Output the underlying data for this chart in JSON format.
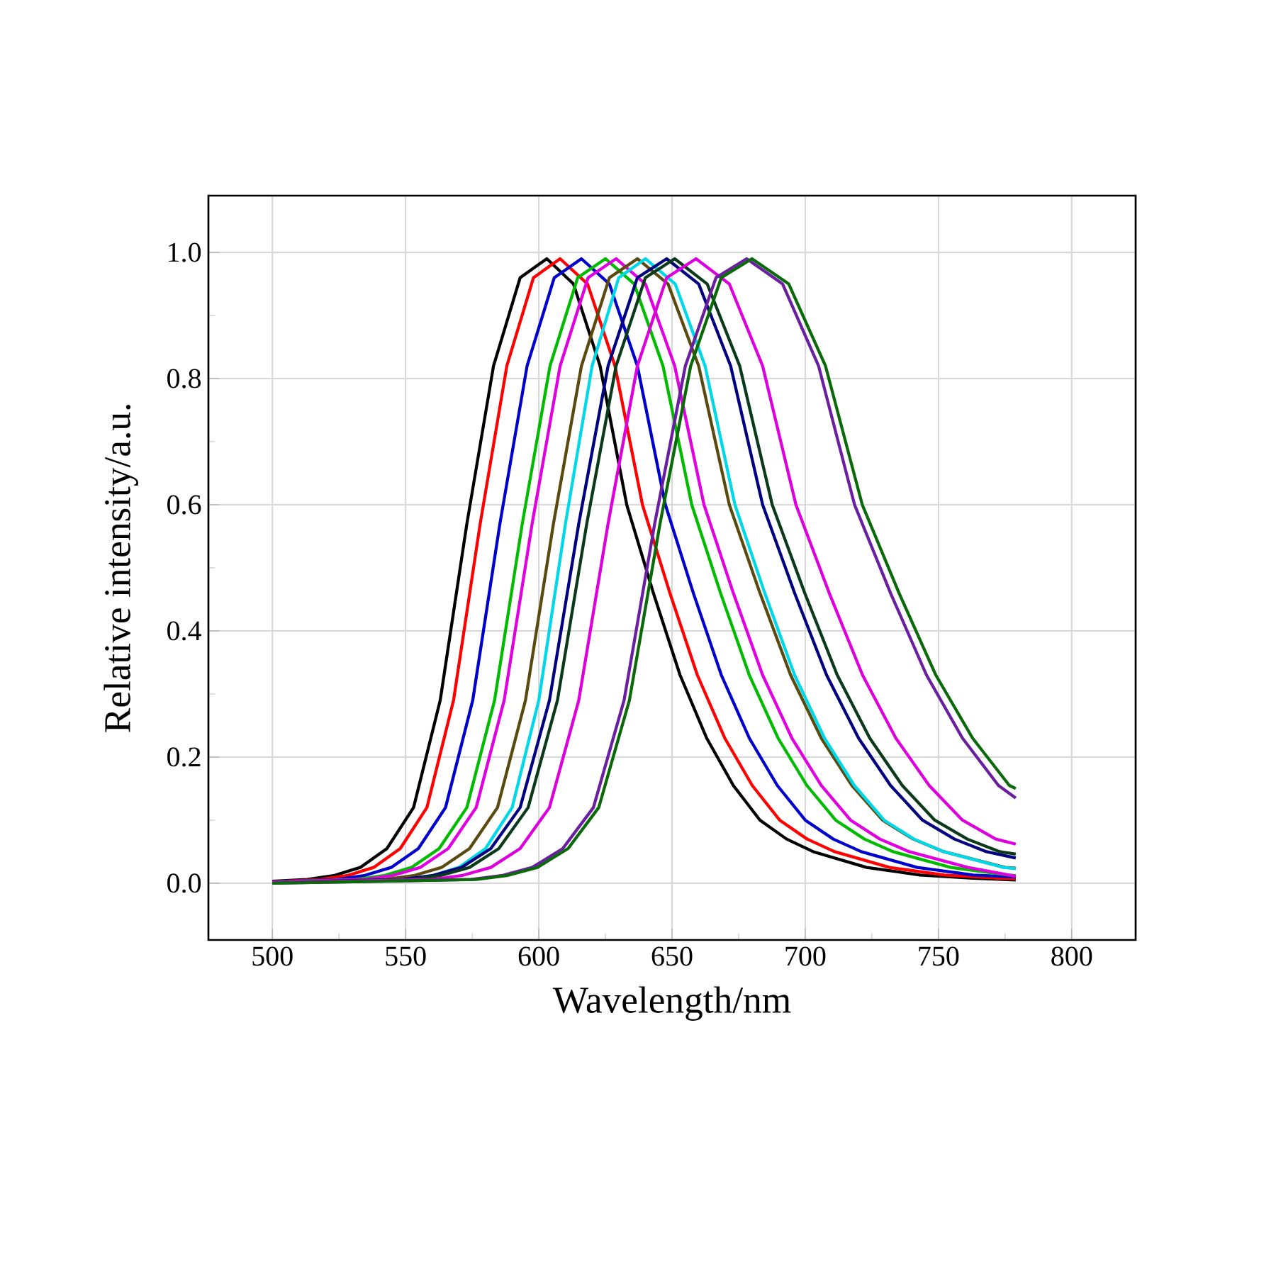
{
  "chart_data": {
    "type": "line",
    "xlabel": "Wavelength/nm",
    "ylabel": "Relative intensity/a.u.",
    "xlim": [
      476,
      824
    ],
    "ylim": [
      -0.09,
      1.09
    ],
    "xticks": [
      500,
      550,
      600,
      650,
      700,
      750,
      800
    ],
    "yticks": [
      {
        "value": 0,
        "label": "0.0"
      },
      0.2,
      0.4,
      0.6,
      0.8,
      {
        "value": 1,
        "label": "1.0"
      }
    ],
    "grid": true,
    "marker": "none",
    "line_style": "solid",
    "series": [
      {
        "color": "#000000",
        "x": [
          500,
          513,
          523,
          533,
          543,
          553,
          563,
          573,
          583,
          593,
          603,
          613,
          623,
          633,
          643,
          653,
          663,
          673,
          683,
          693,
          703,
          723,
          743,
          763,
          779
        ],
        "values": [
          0.003,
          0.006,
          0.012,
          0.025,
          0.055,
          0.12,
          0.29,
          0.57,
          0.82,
          0.96,
          0.99,
          0.95,
          0.82,
          0.6,
          0.46,
          0.33,
          0.23,
          0.155,
          0.1,
          0.07,
          0.05,
          0.025,
          0.013,
          0.008,
          0.005
        ]
      },
      {
        "color": "#ff0000",
        "x": [
          500,
          518,
          528,
          538,
          548,
          558,
          568,
          578,
          588,
          598,
          608,
          618.3,
          628.6,
          638.9,
          649.2,
          659.5,
          669.8,
          680.1,
          690.4,
          700.7,
          711,
          731.6,
          752.2,
          772.8,
          779
        ],
        "values": [
          0.002,
          0.006,
          0.012,
          0.025,
          0.055,
          0.12,
          0.29,
          0.57,
          0.82,
          0.96,
          0.99,
          0.95,
          0.82,
          0.6,
          0.46,
          0.33,
          0.23,
          0.155,
          0.1,
          0.07,
          0.05,
          0.025,
          0.013,
          0.008,
          0.007
        ]
      },
      {
        "color": "#0000cc",
        "x": [
          500,
          524.2,
          534.4,
          544.6,
          554.8,
          565,
          575.2,
          585.4,
          595.6,
          605.8,
          616,
          626.5,
          637,
          647.5,
          658,
          668.5,
          679,
          689.5,
          700,
          710.5,
          721,
          742,
          763,
          779
        ],
        "values": [
          0.002,
          0.006,
          0.012,
          0.025,
          0.055,
          0.12,
          0.29,
          0.57,
          0.82,
          0.96,
          0.99,
          0.95,
          0.82,
          0.6,
          0.46,
          0.33,
          0.23,
          0.155,
          0.1,
          0.07,
          0.05,
          0.025,
          0.013,
          0.01
        ]
      },
      {
        "color": "#00bb00",
        "x": [
          500,
          531.4,
          541.8,
          552.2,
          562.6,
          573,
          583.4,
          593.8,
          604.2,
          614.6,
          625,
          635.8,
          646.6,
          657.4,
          668.2,
          679,
          689.8,
          700.6,
          711.4,
          722.2,
          733,
          754.6,
          776.2,
          779
        ],
        "values": [
          0.002,
          0.006,
          0.012,
          0.025,
          0.055,
          0.12,
          0.29,
          0.57,
          0.82,
          0.96,
          0.99,
          0.95,
          0.82,
          0.6,
          0.46,
          0.33,
          0.23,
          0.155,
          0.1,
          0.07,
          0.05,
          0.025,
          0.013,
          0.012
        ]
      },
      {
        "color": "#e000e0",
        "x": [
          500,
          534.5,
          545,
          555.5,
          566,
          576.5,
          587,
          597.5,
          608,
          618.5,
          629,
          640,
          651,
          662,
          673,
          684,
          695,
          706,
          717,
          728,
          739,
          761,
          779
        ],
        "values": [
          0.002,
          0.006,
          0.012,
          0.025,
          0.055,
          0.12,
          0.29,
          0.57,
          0.82,
          0.96,
          0.99,
          0.95,
          0.82,
          0.6,
          0.46,
          0.33,
          0.23,
          0.155,
          0.1,
          0.07,
          0.05,
          0.025,
          0.011
        ]
      },
      {
        "color": "#5a4a10",
        "x": [
          500,
          542.5,
          553,
          563.5,
          574,
          584.5,
          595,
          605.5,
          616,
          626.5,
          637,
          648.5,
          660,
          671.5,
          683,
          694.5,
          706,
          717.5,
          729,
          740.5,
          752,
          775,
          779
        ],
        "values": [
          0.001,
          0.006,
          0.012,
          0.025,
          0.055,
          0.12,
          0.29,
          0.57,
          0.82,
          0.96,
          0.99,
          0.95,
          0.82,
          0.6,
          0.46,
          0.33,
          0.23,
          0.155,
          0.1,
          0.07,
          0.05,
          0.025,
          0.024
        ]
      },
      {
        "color": "#00d8e8",
        "x": [
          500,
          550,
          560,
          570,
          580,
          590,
          600,
          610,
          620,
          630,
          640,
          651.2,
          662.4,
          673.6,
          684.8,
          696,
          707.2,
          718.4,
          729.6,
          740.8,
          752,
          774.4,
          779
        ],
        "values": [
          0.001,
          0.006,
          0.012,
          0.025,
          0.055,
          0.12,
          0.29,
          0.57,
          0.82,
          0.96,
          0.99,
          0.95,
          0.82,
          0.6,
          0.46,
          0.33,
          0.23,
          0.155,
          0.1,
          0.07,
          0.05,
          0.025,
          0.023
        ]
      },
      {
        "color": "#000080",
        "x": [
          500,
          549,
          560,
          571,
          582,
          593,
          604,
          615,
          626,
          637,
          648,
          660,
          672,
          684,
          696,
          708,
          720,
          732,
          744,
          756,
          768,
          779
        ],
        "values": [
          0.001,
          0.006,
          0.012,
          0.025,
          0.055,
          0.12,
          0.29,
          0.57,
          0.82,
          0.96,
          0.99,
          0.95,
          0.82,
          0.6,
          0.46,
          0.33,
          0.23,
          0.155,
          0.1,
          0.07,
          0.05,
          0.04
        ]
      },
      {
        "color": "#0a3a1a",
        "x": [
          500,
          552,
          563,
          574,
          585,
          596,
          607,
          618,
          629,
          640,
          651,
          663.2,
          675.4,
          687.6,
          699.8,
          712,
          724.2,
          736.4,
          748.6,
          760.8,
          773,
          779
        ],
        "values": [
          0.001,
          0.006,
          0.012,
          0.025,
          0.055,
          0.12,
          0.29,
          0.57,
          0.82,
          0.96,
          0.99,
          0.95,
          0.82,
          0.6,
          0.46,
          0.33,
          0.23,
          0.155,
          0.1,
          0.07,
          0.05,
          0.046
        ]
      },
      {
        "color": "#dd00dd",
        "x": [
          500,
          560,
          571,
          582,
          593,
          604,
          615,
          626,
          637,
          648,
          659,
          671.5,
          684,
          696.5,
          709,
          721.5,
          734,
          746.5,
          759,
          771.5,
          779
        ],
        "values": [
          0.001,
          0.006,
          0.012,
          0.025,
          0.055,
          0.12,
          0.29,
          0.57,
          0.82,
          0.96,
          0.99,
          0.95,
          0.82,
          0.6,
          0.46,
          0.33,
          0.23,
          0.155,
          0.1,
          0.07,
          0.062
        ]
      },
      {
        "color": "#6a1fa0",
        "x": [
          500,
          574.5,
          586,
          597.5,
          609,
          620.5,
          632,
          643.5,
          655,
          666.5,
          678,
          691.5,
          705,
          718.5,
          732,
          745.5,
          759,
          772.5,
          779
        ],
        "values": [
          0,
          0.006,
          0.012,
          0.025,
          0.055,
          0.12,
          0.29,
          0.57,
          0.82,
          0.96,
          0.99,
          0.95,
          0.82,
          0.6,
          0.46,
          0.33,
          0.23,
          0.155,
          0.135
        ]
      },
      {
        "color": "#0a6a0a",
        "x": [
          500,
          576.5,
          588,
          599.5,
          611,
          622.5,
          634,
          645.5,
          657,
          668.5,
          680,
          693.8,
          707.6,
          721.4,
          735.2,
          749,
          762.8,
          776.6,
          779
        ],
        "values": [
          0,
          0.006,
          0.012,
          0.025,
          0.055,
          0.12,
          0.29,
          0.57,
          0.82,
          0.96,
          0.99,
          0.95,
          0.82,
          0.6,
          0.46,
          0.33,
          0.23,
          0.155,
          0.15
        ]
      }
    ]
  }
}
